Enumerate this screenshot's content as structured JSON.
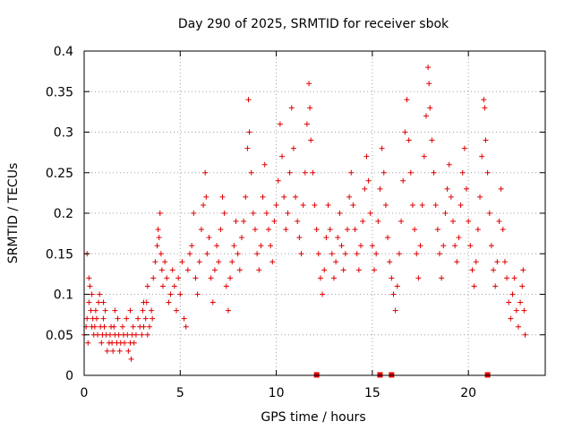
{
  "chart_data": {
    "type": "scatter",
    "title": "Day 290 of 2025, SRMTID for receiver sbok",
    "xlabel": "GPS time / hours",
    "ylabel": "SRMTID / TECUs",
    "xlim": [
      0,
      24
    ],
    "ylim": [
      0,
      0.4
    ],
    "x_ticks": [
      0,
      5,
      10,
      15,
      20
    ],
    "x_tick_labels": [
      "0",
      "5",
      "10",
      "15",
      "20"
    ],
    "y_ticks": [
      0,
      0.05,
      0.1,
      0.15,
      0.2,
      0.25,
      0.3,
      0.35,
      0.4
    ],
    "y_tick_labels": [
      "0",
      "0.05",
      "0.1",
      "0.15",
      "0.2",
      "0.25",
      "0.3",
      "0.35",
      "0.4"
    ],
    "grid": true,
    "marker": "+",
    "color": "#e00000",
    "series": [
      {
        "name": "SRMTID",
        "points": [
          [
            0.0,
            0.05
          ],
          [
            0.1,
            0.06
          ],
          [
            0.15,
            0.07
          ],
          [
            0.2,
            0.04
          ],
          [
            0.25,
            0.09
          ],
          [
            0.3,
            0.11
          ],
          [
            0.35,
            0.08
          ],
          [
            0.4,
            0.06
          ],
          [
            0.45,
            0.07
          ],
          [
            0.5,
            0.05
          ],
          [
            0.55,
            0.06
          ],
          [
            0.6,
            0.08
          ],
          [
            0.65,
            0.07
          ],
          [
            0.7,
            0.05
          ],
          [
            0.75,
            0.09
          ],
          [
            0.8,
            0.1
          ],
          [
            0.85,
            0.06
          ],
          [
            0.9,
            0.04
          ],
          [
            0.95,
            0.05
          ],
          [
            1.0,
            0.07
          ],
          [
            1.05,
            0.06
          ],
          [
            1.1,
            0.08
          ],
          [
            1.15,
            0.05
          ],
          [
            1.2,
            0.03
          ],
          [
            1.3,
            0.04
          ],
          [
            1.35,
            0.05
          ],
          [
            1.4,
            0.06
          ],
          [
            1.45,
            0.04
          ],
          [
            1.5,
            0.03
          ],
          [
            1.55,
            0.06
          ],
          [
            1.6,
            0.05
          ],
          [
            1.7,
            0.04
          ],
          [
            1.75,
            0.07
          ],
          [
            1.8,
            0.05
          ],
          [
            1.85,
            0.03
          ],
          [
            1.9,
            0.04
          ],
          [
            2.0,
            0.06
          ],
          [
            2.05,
            0.05
          ],
          [
            2.1,
            0.04
          ],
          [
            2.2,
            0.07
          ],
          [
            2.25,
            0.05
          ],
          [
            2.3,
            0.03
          ],
          [
            2.4,
            0.04
          ],
          [
            2.45,
            0.02
          ],
          [
            2.5,
            0.05
          ],
          [
            2.55,
            0.06
          ],
          [
            2.6,
            0.04
          ],
          [
            2.7,
            0.05
          ],
          [
            2.8,
            0.07
          ],
          [
            2.9,
            0.06
          ],
          [
            3.0,
            0.05
          ],
          [
            3.05,
            0.08
          ],
          [
            3.1,
            0.06
          ],
          [
            3.2,
            0.07
          ],
          [
            3.25,
            0.09
          ],
          [
            3.3,
            0.05
          ],
          [
            3.4,
            0.06
          ],
          [
            3.5,
            0.08
          ],
          [
            3.55,
            0.07
          ],
          [
            0.15,
            0.15
          ],
          [
            0.25,
            0.12
          ],
          [
            0.4,
            0.1
          ],
          [
            1.0,
            0.09
          ],
          [
            1.6,
            0.08
          ],
          [
            2.4,
            0.08
          ],
          [
            3.1,
            0.09
          ],
          [
            3.3,
            0.11
          ],
          [
            3.6,
            0.12
          ],
          [
            3.7,
            0.14
          ],
          [
            3.8,
            0.16
          ],
          [
            3.85,
            0.18
          ],
          [
            3.9,
            0.17
          ],
          [
            3.95,
            0.2
          ],
          [
            4.0,
            0.15
          ],
          [
            4.05,
            0.13
          ],
          [
            4.1,
            0.11
          ],
          [
            4.2,
            0.14
          ],
          [
            4.3,
            0.12
          ],
          [
            4.4,
            0.09
          ],
          [
            4.5,
            0.1
          ],
          [
            4.6,
            0.13
          ],
          [
            4.7,
            0.11
          ],
          [
            4.8,
            0.08
          ],
          [
            4.9,
            0.12
          ],
          [
            5.0,
            0.1
          ],
          [
            5.1,
            0.14
          ],
          [
            5.2,
            0.07
          ],
          [
            5.3,
            0.06
          ],
          [
            5.4,
            0.13
          ],
          [
            5.5,
            0.15
          ],
          [
            5.6,
            0.16
          ],
          [
            5.7,
            0.2
          ],
          [
            5.8,
            0.12
          ],
          [
            5.9,
            0.1
          ],
          [
            6.0,
            0.14
          ],
          [
            6.1,
            0.18
          ],
          [
            6.2,
            0.21
          ],
          [
            6.3,
            0.25
          ],
          [
            6.35,
            0.22
          ],
          [
            6.4,
            0.15
          ],
          [
            6.5,
            0.17
          ],
          [
            6.6,
            0.12
          ],
          [
            6.7,
            0.09
          ],
          [
            6.8,
            0.13
          ],
          [
            6.9,
            0.16
          ],
          [
            7.0,
            0.14
          ],
          [
            7.1,
            0.18
          ],
          [
            7.2,
            0.22
          ],
          [
            7.3,
            0.2
          ],
          [
            7.4,
            0.11
          ],
          [
            7.5,
            0.08
          ],
          [
            7.6,
            0.12
          ],
          [
            7.7,
            0.14
          ],
          [
            7.8,
            0.16
          ],
          [
            7.9,
            0.19
          ],
          [
            8.0,
            0.15
          ],
          [
            8.1,
            0.13
          ],
          [
            8.2,
            0.17
          ],
          [
            8.3,
            0.19
          ],
          [
            8.4,
            0.22
          ],
          [
            8.5,
            0.28
          ],
          [
            8.55,
            0.34
          ],
          [
            8.6,
            0.3
          ],
          [
            8.7,
            0.25
          ],
          [
            8.8,
            0.2
          ],
          [
            8.9,
            0.18
          ],
          [
            9.0,
            0.15
          ],
          [
            9.1,
            0.13
          ],
          [
            9.2,
            0.16
          ],
          [
            9.3,
            0.22
          ],
          [
            9.4,
            0.26
          ],
          [
            9.5,
            0.2
          ],
          [
            9.6,
            0.18
          ],
          [
            9.7,
            0.16
          ],
          [
            9.8,
            0.14
          ],
          [
            9.9,
            0.19
          ],
          [
            10.0,
            0.21
          ],
          [
            10.1,
            0.24
          ],
          [
            10.2,
            0.31
          ],
          [
            10.3,
            0.27
          ],
          [
            10.4,
            0.22
          ],
          [
            10.5,
            0.18
          ],
          [
            10.6,
            0.2
          ],
          [
            10.7,
            0.25
          ],
          [
            10.8,
            0.33
          ],
          [
            10.9,
            0.28
          ],
          [
            11.0,
            0.22
          ],
          [
            11.1,
            0.19
          ],
          [
            11.2,
            0.17
          ],
          [
            11.3,
            0.15
          ],
          [
            11.4,
            0.21
          ],
          [
            11.5,
            0.25
          ],
          [
            11.6,
            0.31
          ],
          [
            11.7,
            0.36
          ],
          [
            11.75,
            0.33
          ],
          [
            11.8,
            0.29
          ],
          [
            11.9,
            0.25
          ],
          [
            12.0,
            0.21
          ],
          [
            12.1,
            0.18
          ],
          [
            12.2,
            0.15
          ],
          [
            12.3,
            0.12
          ],
          [
            12.4,
            0.1
          ],
          [
            12.5,
            0.13
          ],
          [
            12.6,
            0.17
          ],
          [
            12.7,
            0.21
          ],
          [
            12.8,
            0.18
          ],
          [
            12.9,
            0.15
          ],
          [
            13.0,
            0.12
          ],
          [
            13.1,
            0.14
          ],
          [
            13.2,
            0.17
          ],
          [
            13.3,
            0.2
          ],
          [
            13.4,
            0.16
          ],
          [
            13.5,
            0.13
          ],
          [
            13.6,
            0.15
          ],
          [
            13.7,
            0.18
          ],
          [
            13.8,
            0.22
          ],
          [
            13.9,
            0.25
          ],
          [
            14.0,
            0.21
          ],
          [
            14.1,
            0.18
          ],
          [
            14.2,
            0.15
          ],
          [
            14.3,
            0.13
          ],
          [
            14.4,
            0.16
          ],
          [
            14.5,
            0.19
          ],
          [
            14.6,
            0.23
          ],
          [
            14.7,
            0.27
          ],
          [
            14.8,
            0.24
          ],
          [
            14.9,
            0.2
          ],
          [
            15.0,
            0.16
          ],
          [
            15.1,
            0.13
          ],
          [
            15.2,
            0.15
          ],
          [
            15.3,
            0.19
          ],
          [
            15.4,
            0.23
          ],
          [
            15.5,
            0.28
          ],
          [
            15.6,
            0.25
          ],
          [
            15.7,
            0.21
          ],
          [
            15.8,
            0.17
          ],
          [
            15.9,
            0.14
          ],
          [
            16.0,
            0.12
          ],
          [
            16.1,
            0.1
          ],
          [
            16.2,
            0.08
          ],
          [
            16.3,
            0.11
          ],
          [
            16.4,
            0.15
          ],
          [
            16.5,
            0.19
          ],
          [
            16.6,
            0.24
          ],
          [
            16.7,
            0.3
          ],
          [
            16.8,
            0.34
          ],
          [
            16.9,
            0.29
          ],
          [
            17.0,
            0.25
          ],
          [
            17.1,
            0.21
          ],
          [
            17.2,
            0.18
          ],
          [
            17.3,
            0.15
          ],
          [
            17.4,
            0.12
          ],
          [
            17.5,
            0.16
          ],
          [
            17.6,
            0.21
          ],
          [
            17.7,
            0.27
          ],
          [
            17.8,
            0.32
          ],
          [
            17.9,
            0.38
          ],
          [
            17.95,
            0.36
          ],
          [
            18.0,
            0.33
          ],
          [
            18.1,
            0.29
          ],
          [
            18.2,
            0.25
          ],
          [
            18.3,
            0.21
          ],
          [
            18.4,
            0.18
          ],
          [
            18.5,
            0.15
          ],
          [
            18.6,
            0.12
          ],
          [
            18.7,
            0.16
          ],
          [
            18.8,
            0.2
          ],
          [
            18.9,
            0.23
          ],
          [
            19.0,
            0.26
          ],
          [
            19.1,
            0.22
          ],
          [
            19.2,
            0.19
          ],
          [
            19.3,
            0.16
          ],
          [
            19.4,
            0.14
          ],
          [
            19.5,
            0.17
          ],
          [
            19.6,
            0.21
          ],
          [
            19.7,
            0.25
          ],
          [
            19.8,
            0.28
          ],
          [
            19.9,
            0.23
          ],
          [
            20.0,
            0.19
          ],
          [
            20.1,
            0.16
          ],
          [
            20.2,
            0.13
          ],
          [
            20.3,
            0.11
          ],
          [
            20.4,
            0.14
          ],
          [
            20.5,
            0.18
          ],
          [
            20.6,
            0.22
          ],
          [
            20.7,
            0.27
          ],
          [
            20.8,
            0.34
          ],
          [
            20.85,
            0.33
          ],
          [
            20.9,
            0.29
          ],
          [
            21.0,
            0.25
          ],
          [
            21.1,
            0.2
          ],
          [
            21.2,
            0.16
          ],
          [
            21.3,
            0.13
          ],
          [
            21.4,
            0.11
          ],
          [
            21.5,
            0.14
          ],
          [
            21.6,
            0.19
          ],
          [
            21.7,
            0.23
          ],
          [
            21.8,
            0.18
          ],
          [
            21.9,
            0.14
          ],
          [
            22.0,
            0.12
          ],
          [
            22.1,
            0.09
          ],
          [
            22.2,
            0.07
          ],
          [
            22.3,
            0.1
          ],
          [
            22.4,
            0.12
          ],
          [
            22.5,
            0.08
          ],
          [
            22.6,
            0.06
          ],
          [
            22.7,
            0.09
          ],
          [
            22.8,
            0.11
          ],
          [
            22.85,
            0.13
          ],
          [
            22.9,
            0.08
          ],
          [
            22.95,
            0.05
          ]
        ]
      }
    ],
    "gap_markers_x": [
      12.1,
      15.4,
      16.0,
      21.0
    ]
  }
}
